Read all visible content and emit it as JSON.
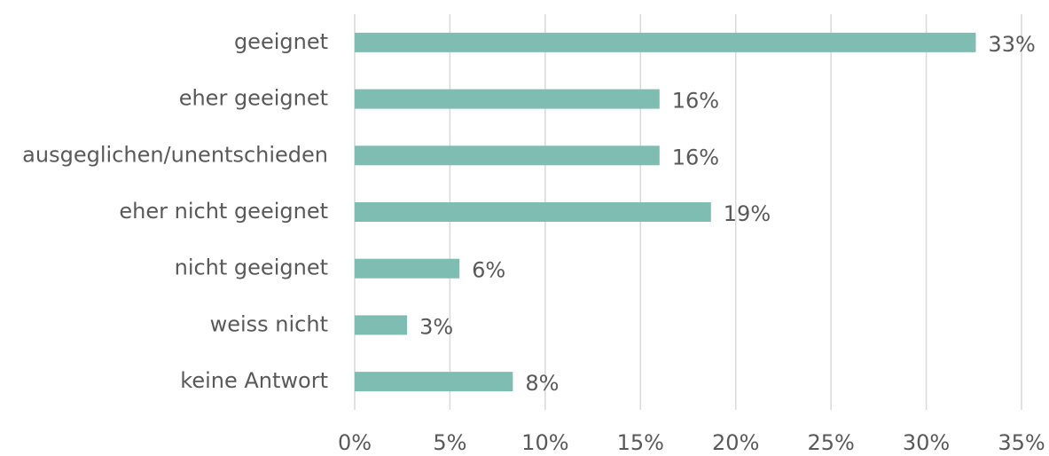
{
  "chart_data": {
    "type": "bar",
    "orientation": "horizontal",
    "categories": [
      "geeignet",
      "eher geeignet",
      "ausgeglichen/unentschieden",
      "eher nicht geeignet",
      "nicht geeignet",
      "weiss nicht",
      "keine Antwort"
    ],
    "values": [
      32.6,
      16,
      16,
      18.7,
      5.5,
      2.75,
      8.3
    ],
    "value_labels": [
      "33%",
      "16%",
      "16%",
      "19%",
      "6%",
      "3%",
      "8%"
    ],
    "color": "#7fbcb1",
    "xlim": [
      0,
      35
    ],
    "xticks": [
      {
        "value": 0,
        "label": "0%"
      },
      {
        "value": 5,
        "label": "5%"
      },
      {
        "value": 10,
        "label": "10%"
      },
      {
        "value": 15,
        "label": "15%"
      },
      {
        "value": 20,
        "label": "20%"
      },
      {
        "value": 25,
        "label": "25%"
      },
      {
        "value": 30,
        "label": "30%"
      },
      {
        "value": 35,
        "label": "35%"
      }
    ],
    "grid": true
  }
}
